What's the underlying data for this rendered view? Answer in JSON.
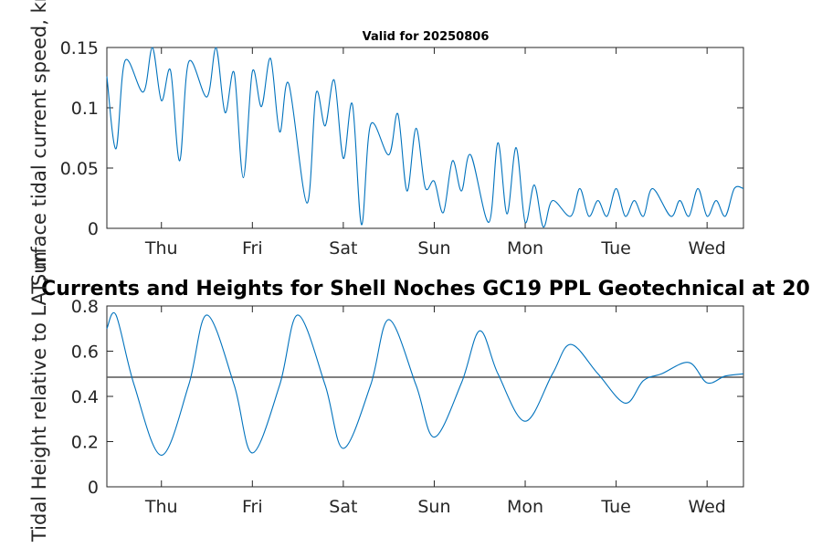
{
  "chart_data": [
    {
      "type": "line",
      "title": "Valid for 20250806",
      "ylabel": "Surface tidal current speed, kn",
      "xlabel": "",
      "x_domain_days": [
        0,
        7
      ],
      "day_tick_labels": [
        "Thu",
        "Fri",
        "Sat",
        "Sun",
        "Mon",
        "Tue",
        "Wed"
      ],
      "day_tick_positions_days": [
        0.6,
        1.6,
        2.6,
        3.6,
        4.6,
        5.6,
        6.6
      ],
      "ylim": [
        0,
        0.15
      ],
      "yticks": [
        0,
        0.05,
        0.1,
        0.15
      ],
      "ytick_labels": [
        "0",
        "0.05",
        "0.1",
        "0.15"
      ],
      "grid": false,
      "line_color": "#0072BD",
      "series": [
        {
          "x": [
            0.0,
            0.1,
            0.2,
            0.4,
            0.5,
            0.6,
            0.7,
            0.8,
            0.9,
            1.1,
            1.2,
            1.3,
            1.4,
            1.5,
            1.6,
            1.7,
            1.8,
            1.9,
            2.0,
            2.2,
            2.3,
            2.4,
            2.5,
            2.6,
            2.7,
            2.8,
            2.9,
            3.1,
            3.2,
            3.3,
            3.4,
            3.5,
            3.6,
            3.7,
            3.8,
            3.9,
            4.0,
            4.2,
            4.3,
            4.4,
            4.5,
            4.6,
            4.7,
            4.8,
            4.9,
            5.1,
            5.2,
            5.3,
            5.4,
            5.5,
            5.6,
            5.7,
            5.8,
            5.9,
            6.0,
            6.2,
            6.3,
            6.4,
            6.5,
            6.6,
            6.7,
            6.8,
            6.9,
            7.0
          ],
          "y": [
            0.126,
            0.066,
            0.139,
            0.113,
            0.15,
            0.106,
            0.131,
            0.056,
            0.138,
            0.109,
            0.15,
            0.096,
            0.129,
            0.042,
            0.13,
            0.101,
            0.141,
            0.08,
            0.12,
            0.021,
            0.112,
            0.085,
            0.123,
            0.058,
            0.103,
            0.003,
            0.086,
            0.061,
            0.095,
            0.031,
            0.083,
            0.034,
            0.039,
            0.013,
            0.056,
            0.031,
            0.061,
            0.005,
            0.071,
            0.012,
            0.067,
            0.005,
            0.036,
            0.001,
            0.023,
            0.01,
            0.033,
            0.01,
            0.023,
            0.01,
            0.033,
            0.01,
            0.023,
            0.01,
            0.033,
            0.01,
            0.023,
            0.01,
            0.033,
            0.01,
            0.023,
            0.01,
            0.033,
            0.033
          ]
        }
      ]
    },
    {
      "type": "line",
      "title": "Currents and Heights for Shell Noches   GC19 PPL  Geotechnical at 20",
      "ylabel": "Tidal Height relative to LAT, m",
      "xlabel": "",
      "x_domain_days": [
        0,
        7
      ],
      "day_tick_labels": [
        "Thu",
        "Fri",
        "Sat",
        "Sun",
        "Mon",
        "Tue",
        "Wed"
      ],
      "day_tick_positions_days": [
        0.6,
        1.6,
        2.6,
        3.6,
        4.6,
        5.6,
        6.6
      ],
      "ylim": [
        0,
        0.8
      ],
      "yticks": [
        0,
        0.2,
        0.4,
        0.6,
        0.8
      ],
      "ytick_labels": [
        "0",
        "0.2",
        "0.4",
        "0.6",
        "0.8"
      ],
      "grid": false,
      "line_color": "#0072BD",
      "reference_line": {
        "y": 0.485,
        "color": "#555555"
      },
      "series": [
        {
          "x": [
            0.0,
            0.1,
            0.3,
            0.6,
            0.9,
            1.1,
            1.4,
            1.6,
            1.9,
            2.1,
            2.4,
            2.6,
            2.9,
            3.1,
            3.4,
            3.6,
            3.9,
            4.1,
            4.3,
            4.6,
            4.9,
            5.1,
            5.4,
            5.7,
            5.9,
            6.1,
            6.4,
            6.6,
            6.8,
            7.0
          ],
          "y": [
            0.7,
            0.76,
            0.45,
            0.14,
            0.45,
            0.76,
            0.45,
            0.15,
            0.45,
            0.76,
            0.45,
            0.17,
            0.45,
            0.74,
            0.45,
            0.22,
            0.46,
            0.69,
            0.5,
            0.29,
            0.5,
            0.63,
            0.5,
            0.37,
            0.47,
            0.5,
            0.55,
            0.46,
            0.49,
            0.5
          ]
        }
      ]
    }
  ]
}
